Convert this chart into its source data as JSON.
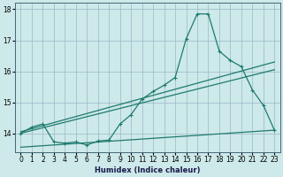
{
  "xlabel": "Humidex (Indice chaleur)",
  "bg_color": "#cde9e9",
  "grid_color": "#9ab8c8",
  "line_color": "#1e7a6e",
  "xlim": [
    -0.5,
    23.5
  ],
  "ylim": [
    13.4,
    18.2
  ],
  "yticks": [
    14,
    15,
    16,
    17,
    18
  ],
  "xticks": [
    0,
    1,
    2,
    3,
    4,
    5,
    6,
    7,
    8,
    9,
    10,
    11,
    12,
    13,
    14,
    15,
    16,
    17,
    18,
    19,
    20,
    21,
    22,
    23
  ],
  "main_series_x": [
    0,
    1,
    2,
    3,
    4,
    5,
    6,
    7,
    8,
    9,
    10,
    11,
    12,
    13,
    14,
    15,
    16,
    17,
    18,
    19,
    20,
    21,
    22,
    23
  ],
  "main_series_y": [
    14.0,
    14.2,
    14.3,
    13.72,
    13.68,
    13.72,
    13.62,
    13.75,
    13.78,
    14.3,
    14.6,
    15.1,
    15.35,
    15.55,
    15.8,
    17.05,
    17.85,
    17.85,
    16.65,
    16.35,
    16.15,
    15.4,
    14.9,
    14.1
  ],
  "trend1_x": [
    0,
    23
  ],
  "trend1_y": [
    14.0,
    16.05
  ],
  "trend2_x": [
    0,
    23
  ],
  "trend2_y": [
    14.05,
    16.3
  ],
  "trend3_x": [
    0,
    23
  ],
  "trend3_y": [
    13.55,
    14.1
  ]
}
